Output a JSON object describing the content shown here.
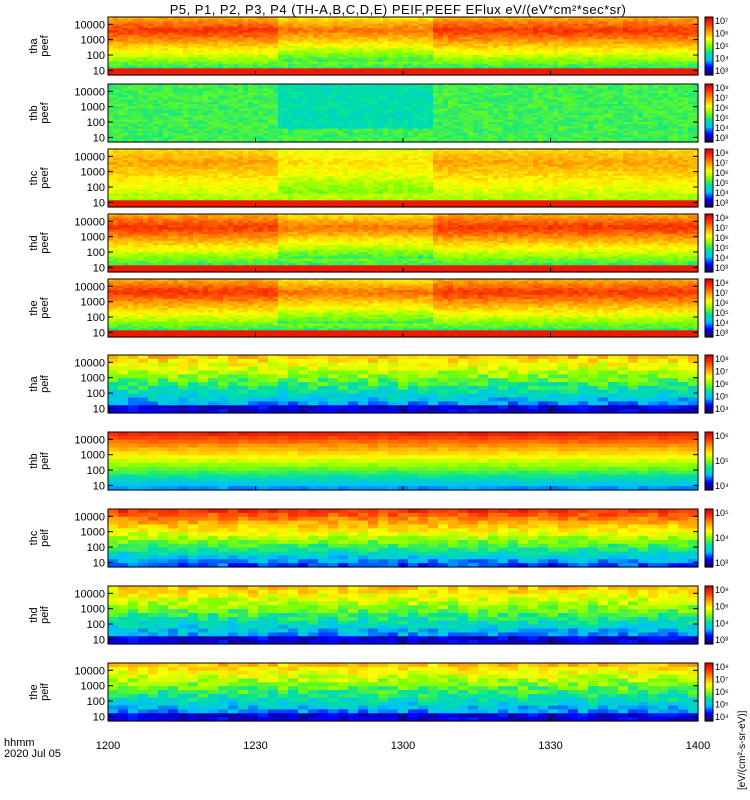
{
  "chart_data": {
    "type": "heatmap",
    "title": "P5, P1, P2, P3, P4 (TH-A,B,C,D,E) PEIF,PEEF EFlux eV/(eV*cm²*sec*sr)",
    "x_axis_label": "hhmm",
    "date_label": "2020 Jul 05",
    "x_ticks": [
      "1200",
      "1230",
      "1300",
      "1330",
      "1400"
    ],
    "x_range": [
      "1200",
      "1400"
    ],
    "y_scale": "log",
    "y_range": [
      5,
      30000
    ],
    "y_ticks": [
      "10000",
      "1000",
      "100",
      "10"
    ],
    "colorbar_unit_label": "[eV/(cm²-s-sr-eV)]",
    "colormap": [
      "#1a0060",
      "#0000ff",
      "#00bfff",
      "#00e0a0",
      "#7fff00",
      "#ffff00",
      "#ffa500",
      "#ff4000",
      "#e00000"
    ],
    "panels": [
      {
        "probe": "tha",
        "species": "peef",
        "cbar_ticks": [
          "10⁷",
          "10⁶",
          "10⁵",
          "10⁴",
          "10³"
        ]
      },
      {
        "probe": "thb",
        "species": "peef",
        "cbar_ticks": [
          "10⁸",
          "10⁷",
          "10⁶",
          "10⁵",
          "10⁴",
          "10³"
        ]
      },
      {
        "probe": "thc",
        "species": "peef",
        "cbar_ticks": [
          "10⁸",
          "10⁷",
          "10⁶",
          "10⁵",
          "10⁴",
          "10³"
        ]
      },
      {
        "probe": "thd",
        "species": "peef",
        "cbar_ticks": [
          "10⁸",
          "10⁷",
          "10⁶",
          "10⁵",
          "10⁴",
          "10³"
        ]
      },
      {
        "probe": "the",
        "species": "peef",
        "cbar_ticks": [
          "10⁸",
          "10⁷",
          "10⁶",
          "10⁵",
          "10⁴",
          "10³"
        ]
      },
      {
        "probe": "tha",
        "species": "peif",
        "cbar_ticks": [
          "10⁸",
          "10⁷",
          "10⁶",
          "10⁵",
          "10⁴"
        ]
      },
      {
        "probe": "thb",
        "species": "peif",
        "cbar_ticks": [
          "10⁶",
          "10⁵",
          "10⁴"
        ]
      },
      {
        "probe": "thc",
        "species": "peif",
        "cbar_ticks": [
          "10⁵",
          "10⁴",
          "10³"
        ]
      },
      {
        "probe": "thd",
        "species": "peif",
        "cbar_ticks": [
          "10⁸",
          "10⁶",
          "10⁴",
          "10³"
        ]
      },
      {
        "probe": "the",
        "species": "peif",
        "cbar_ticks": [
          "10⁸",
          "10⁷",
          "10⁶",
          "10⁵",
          "10⁴"
        ]
      }
    ]
  }
}
